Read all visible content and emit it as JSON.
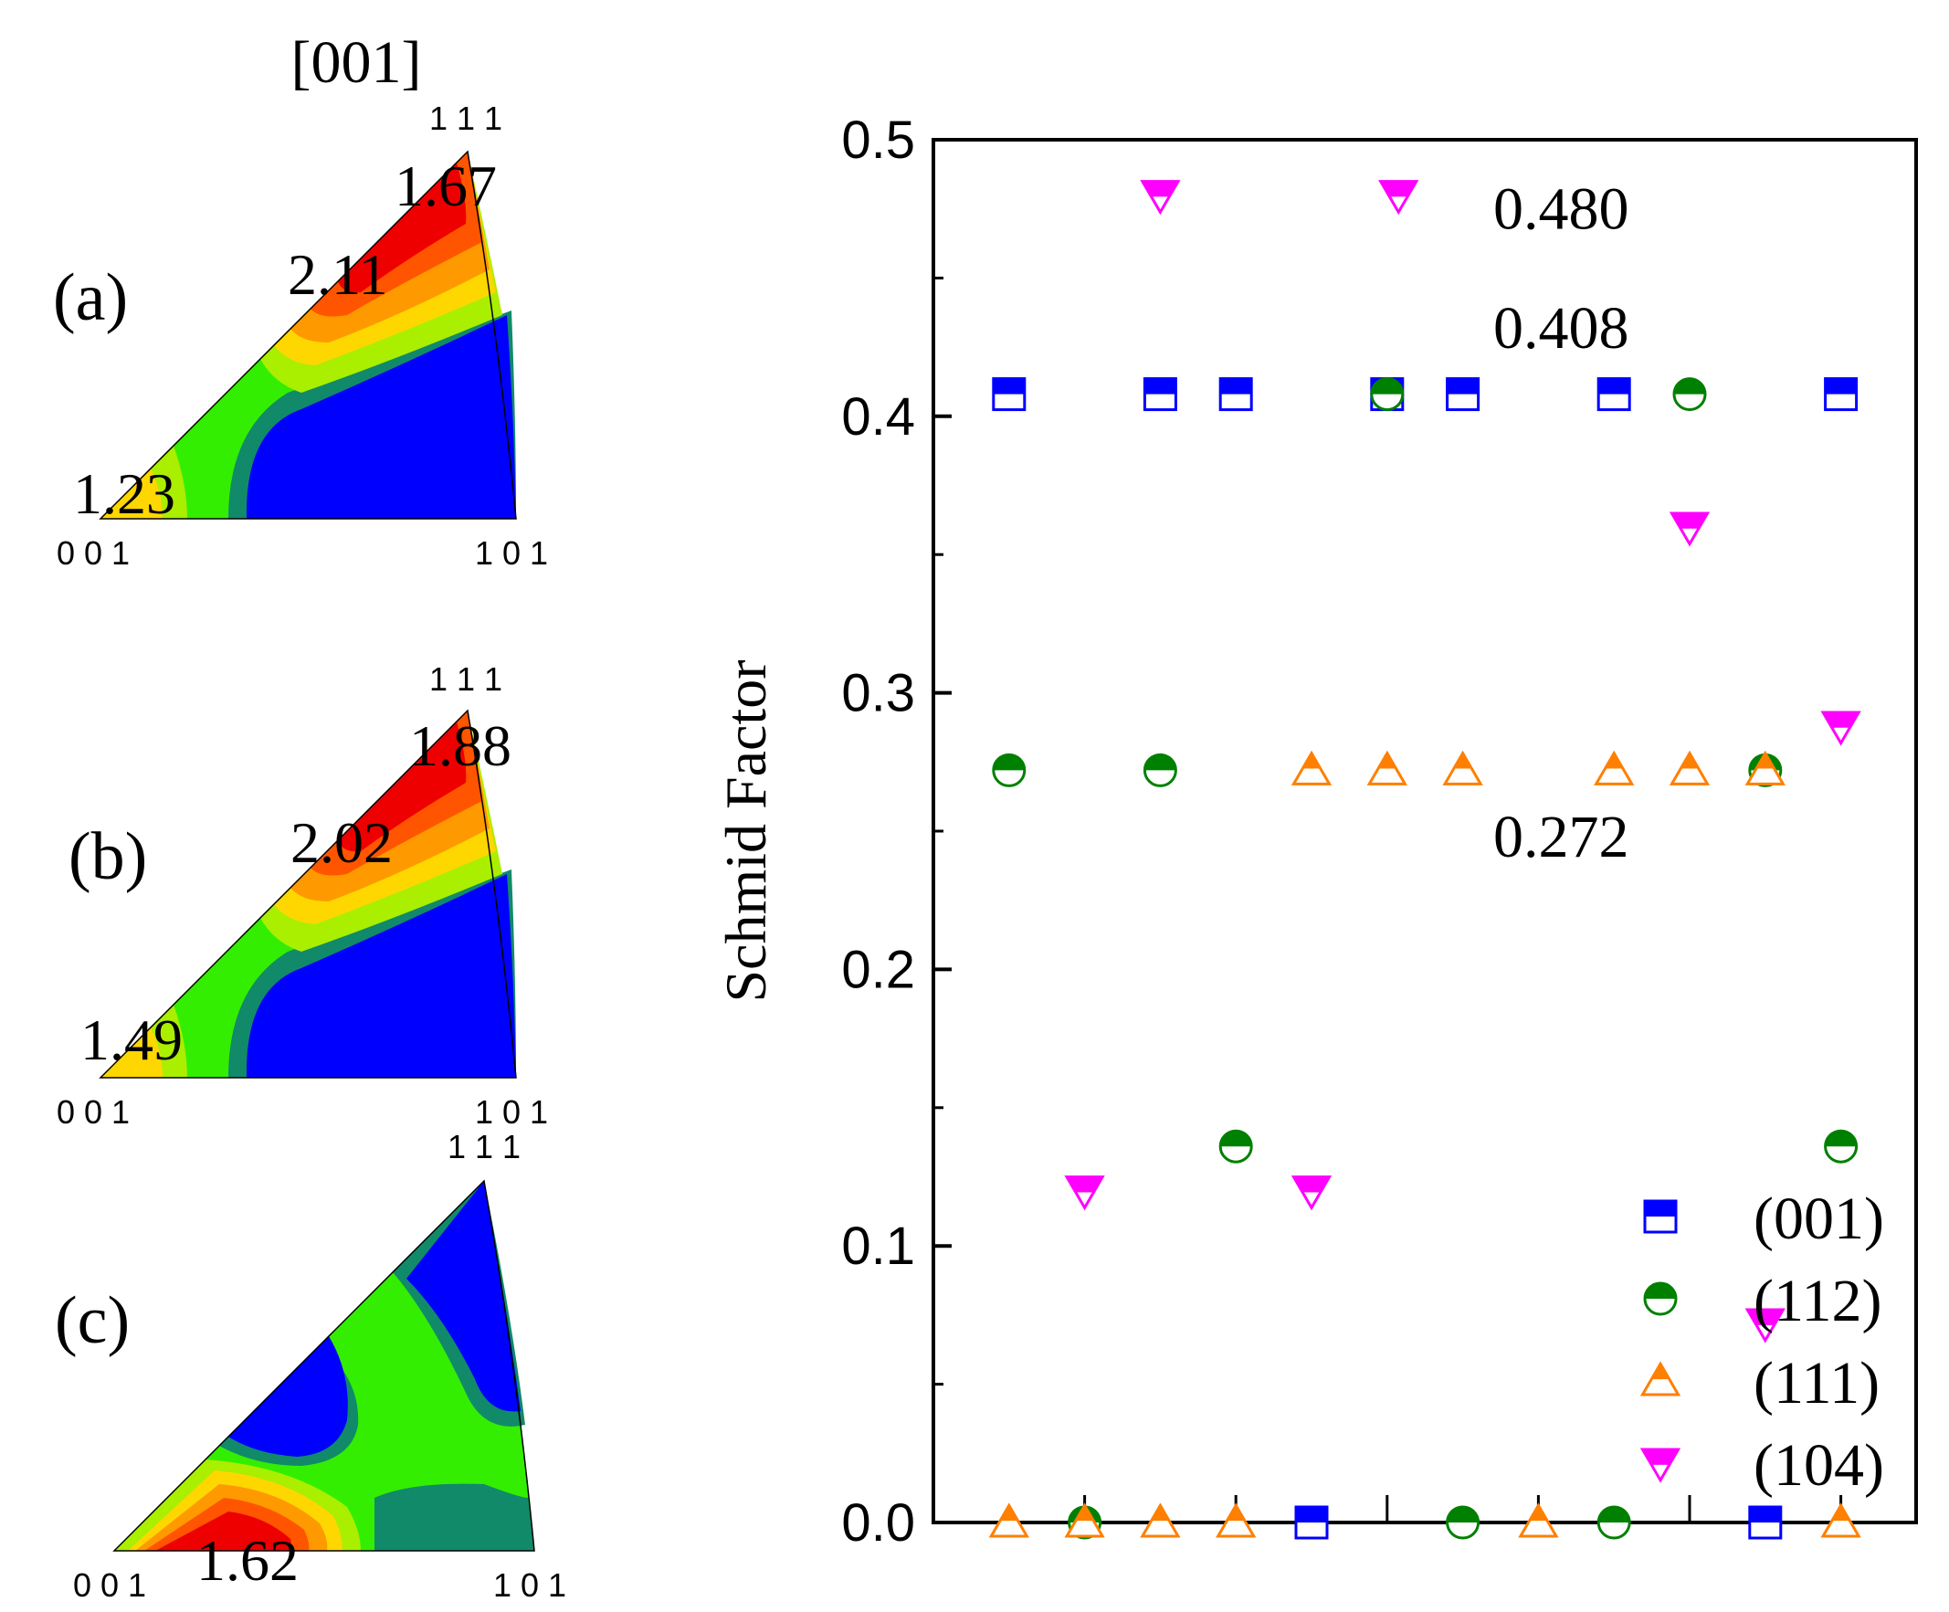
{
  "ipf": {
    "direction_label": "[001]",
    "panels": [
      {
        "label": "(a)",
        "corner_111": "1 1 1",
        "corner_001": "0 0 1",
        "corner_101": "1 0 1",
        "values": {
          "max_111": "1.67",
          "mid_edge": "2.11",
          "min_001": "1.23"
        }
      },
      {
        "label": "(b)",
        "corner_111": "1 1 1",
        "corner_001": "0 0 1",
        "corner_101": "1 0 1",
        "values": {
          "max_111": "1.88",
          "mid_edge": "2.02",
          "min_001": "1.49"
        }
      },
      {
        "label": "(c)",
        "corner_111": "1 1 1",
        "corner_001": "0 0 1",
        "corner_101": "1 0 1",
        "values": {
          "min_001": "1.62"
        }
      }
    ],
    "colors": {
      "blue": "#0000ff",
      "teal": "#118a6a",
      "green": "#33ee00",
      "lime": "#aaee00",
      "yellow": "#ffd700",
      "orange": "#ff9900",
      "red_orange": "#ff5500",
      "red": "#ee0000"
    }
  },
  "chart_data": {
    "type": "scatter",
    "title": "",
    "xlabel": "",
    "ylabel": "Schmid Factor",
    "ylim": [
      0,
      0.5
    ],
    "xlim": [
      0,
      13
    ],
    "yticks": [
      "0.0",
      "0.1",
      "0.2",
      "0.3",
      "0.4",
      "0.5"
    ],
    "grid": false,
    "legend_position": "bottom-right",
    "annotations": [
      {
        "text": "0.480",
        "x": 8.3,
        "y": 0.475
      },
      {
        "text": "0.408",
        "x": 8.3,
        "y": 0.432
      },
      {
        "text": "0.272",
        "x": 8.3,
        "y": 0.248
      }
    ],
    "series": [
      {
        "name": "(001)",
        "marker": "square-half",
        "color": "#0000ff",
        "points": [
          [
            1,
            0.408
          ],
          [
            3,
            0.408
          ],
          [
            4,
            0.408
          ],
          [
            6,
            0.408
          ],
          [
            7,
            0.408
          ],
          [
            9,
            0.408
          ],
          [
            12,
            0.408
          ],
          [
            5,
            0.0
          ],
          [
            11,
            0.0
          ]
        ]
      },
      {
        "name": "(112)",
        "marker": "circle-half",
        "color": "#008000",
        "points": [
          [
            1,
            0.272
          ],
          [
            3,
            0.272
          ],
          [
            6,
            0.408
          ],
          [
            10,
            0.408
          ],
          [
            11,
            0.272
          ],
          [
            4,
            0.136
          ],
          [
            12,
            0.136
          ],
          [
            2,
            0.0
          ],
          [
            7,
            0.0
          ],
          [
            9,
            0.0
          ]
        ]
      },
      {
        "name": "(111)",
        "marker": "triangle-up-half",
        "color": "#ff7f00",
        "points": [
          [
            5,
            0.272
          ],
          [
            6,
            0.272
          ],
          [
            7,
            0.272
          ],
          [
            9,
            0.272
          ],
          [
            10,
            0.272
          ],
          [
            11,
            0.272
          ],
          [
            1,
            0.0
          ],
          [
            2,
            0.0
          ],
          [
            3,
            0.0
          ],
          [
            4,
            0.0
          ],
          [
            8,
            0.0
          ],
          [
            12,
            0.0
          ]
        ]
      },
      {
        "name": "(104)",
        "marker": "triangle-down-half",
        "color": "#ff00ff",
        "points": [
          [
            3,
            0.48
          ],
          [
            10,
            0.36
          ],
          [
            12,
            0.288
          ],
          [
            2,
            0.12
          ],
          [
            5,
            0.12
          ],
          [
            11,
            0.072
          ]
        ]
      }
    ],
    "legend_extra_marker": {
      "series": "(104)",
      "x": 8.3,
      "y": 0.48
    }
  }
}
